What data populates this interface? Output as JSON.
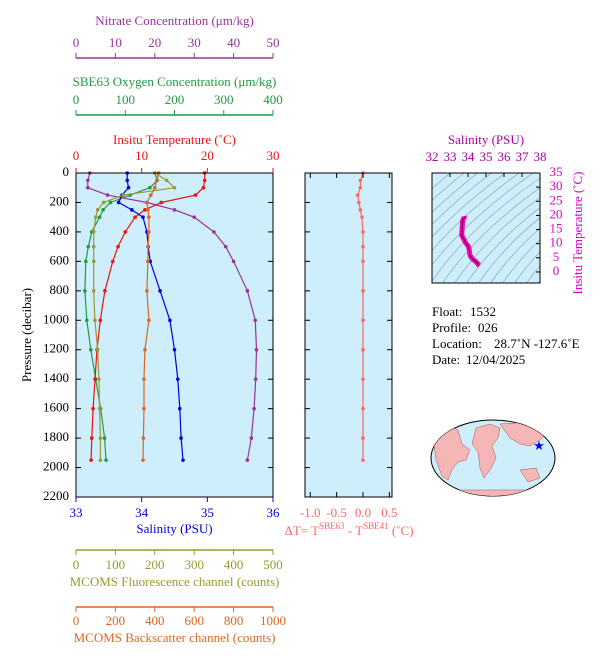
{
  "chart_data": [
    {
      "type": "profile",
      "ylabel": "Pressure (decibar)",
      "ylim": [
        0,
        2200
      ],
      "yticks": [
        0,
        200,
        400,
        600,
        800,
        1000,
        1200,
        1400,
        1600,
        1800,
        2000,
        2200
      ],
      "y_inverted": true,
      "background": "#cdeefa",
      "pressure": [
        0,
        50,
        100,
        150,
        200,
        250,
        300,
        400,
        500,
        600,
        800,
        1000,
        1200,
        1400,
        1600,
        1800,
        1950
      ],
      "series": [
        {
          "name": "Nitrate Concentration (μm/kg)",
          "color": "#993399",
          "xlim": [
            0,
            50
          ],
          "xticks": [
            0,
            10,
            20,
            30,
            40,
            50
          ],
          "markers": true,
          "values": [
            3.5,
            3,
            3,
            8,
            18,
            25,
            30,
            35,
            38,
            40,
            43.5,
            45.5,
            45.8,
            45.6,
            45.2,
            44.5,
            43.5
          ]
        },
        {
          "name": "SBE63 Oxygen Concentration (μm/kg)",
          "color": "#229944",
          "xlim": [
            0,
            400
          ],
          "xticks": [
            0,
            100,
            200,
            300,
            400
          ],
          "markers": true,
          "values": [
            160,
            165,
            150,
            110,
            70,
            55,
            48,
            32,
            25,
            20,
            18,
            22,
            30,
            40,
            50,
            58,
            61
          ]
        },
        {
          "name": "Insitu Temperature (˚C)",
          "color": "#ee1111",
          "xlim": [
            0,
            30
          ],
          "xticks": [
            0,
            10,
            20,
            30
          ],
          "markers": true,
          "values": [
            19.6,
            19.6,
            19.4,
            18.2,
            13,
            10.5,
            9,
            7.5,
            6.4,
            5.6,
            4.4,
            3.7,
            3.2,
            2.9,
            2.6,
            2.4,
            2.3
          ]
        },
        {
          "name": "Salinity (PSU)",
          "color": "#0000dd",
          "xlim": [
            33,
            36
          ],
          "xticks": [
            33,
            34,
            35,
            36
          ],
          "markers": true,
          "values": [
            33.78,
            33.78,
            33.8,
            33.7,
            33.65,
            33.85,
            34.02,
            34.08,
            34.1,
            34.13,
            34.28,
            34.43,
            34.5,
            34.55,
            34.58,
            34.6,
            34.63
          ]
        },
        {
          "name": "MCOMS Fluorescence channel (counts)",
          "color": "#999933",
          "xlim": [
            0,
            500
          ],
          "xticks": [
            0,
            100,
            200,
            300,
            400,
            500
          ],
          "markers": true,
          "values": [
            200,
            230,
            250,
            120,
            70,
            55,
            50,
            45,
            45,
            45,
            45,
            48,
            55,
            58,
            60,
            62,
            62
          ]
        },
        {
          "name": "MCOMS Backscatter channel (counts)",
          "color": "#dd6622",
          "xlim": [
            0,
            1000
          ],
          "xticks": [
            0,
            200,
            400,
            600,
            800,
            1000
          ],
          "markers": true,
          "values": [
            420,
            410,
            400,
            380,
            360,
            365,
            370,
            370,
            365,
            365,
            360,
            370,
            350,
            345,
            345,
            342,
            340
          ]
        }
      ]
    },
    {
      "type": "profile",
      "ylim": [
        0,
        2200
      ],
      "yticks": [
        0,
        200,
        400,
        600,
        800,
        1000,
        1200,
        1400,
        1600,
        1800,
        2000,
        2200
      ],
      "y_inverted": true,
      "background": "#cdeefa",
      "pressure": [
        0,
        50,
        100,
        150,
        200,
        250,
        300,
        400,
        500,
        600,
        800,
        1000,
        1200,
        1400,
        1600,
        1800,
        1950
      ],
      "xlim": [
        -1.1,
        0.55
      ],
      "xticks": [
        {
          "value": -1,
          "label": "-1.0"
        },
        {
          "value": -0.5,
          "label": "-0.5"
        },
        {
          "value": 0,
          "label": "0.0"
        },
        {
          "value": 0.5,
          "label": "0.5"
        }
      ],
      "xlabel_parts": [
        "ΔT= T",
        "SBE63",
        " - T",
        "SBE41",
        " (˚C)"
      ],
      "series": [
        {
          "color": "#ff6666",
          "markers": true,
          "values": [
            0,
            -0.05,
            -0.05,
            -0.1,
            -0.08,
            -0.05,
            -0.02,
            0,
            0,
            0,
            0,
            0,
            0,
            0,
            0,
            0,
            0
          ]
        }
      ]
    },
    {
      "type": "line",
      "title": "Salinity (PSU)",
      "ylabel": "Insitu Temperature (˚C)",
      "xlim": [
        32,
        38
      ],
      "xticks": [
        32,
        33,
        34,
        35,
        36,
        37,
        38
      ],
      "ylim": [
        -3.9,
        35
      ],
      "yticks": [
        0,
        5,
        10,
        15,
        20,
        25,
        30,
        35
      ],
      "color": "#ff00cc",
      "background": "#cdeefa",
      "x": [
        33.78,
        33.78,
        33.8,
        33.7,
        33.65,
        33.85,
        34.02,
        34.08,
        34.1,
        34.13,
        34.28,
        34.43,
        34.5,
        34.55,
        34.58,
        34.6,
        34.63
      ],
      "values": [
        19.6,
        19.6,
        19.4,
        18.2,
        13,
        10.5,
        9,
        7.5,
        6.4,
        5.6,
        4.4,
        3.7,
        3.2,
        2.9,
        2.6,
        2.4,
        2.3
      ]
    }
  ],
  "float_info": [
    {
      "label": "Float:",
      "value": "1532"
    },
    {
      "label": "Profile:",
      "value": "026"
    },
    {
      "label": "Location:",
      "value": "28.7˚N  -127.6˚E"
    },
    {
      "label": "Date:",
      "value": "12/04/2025"
    }
  ]
}
